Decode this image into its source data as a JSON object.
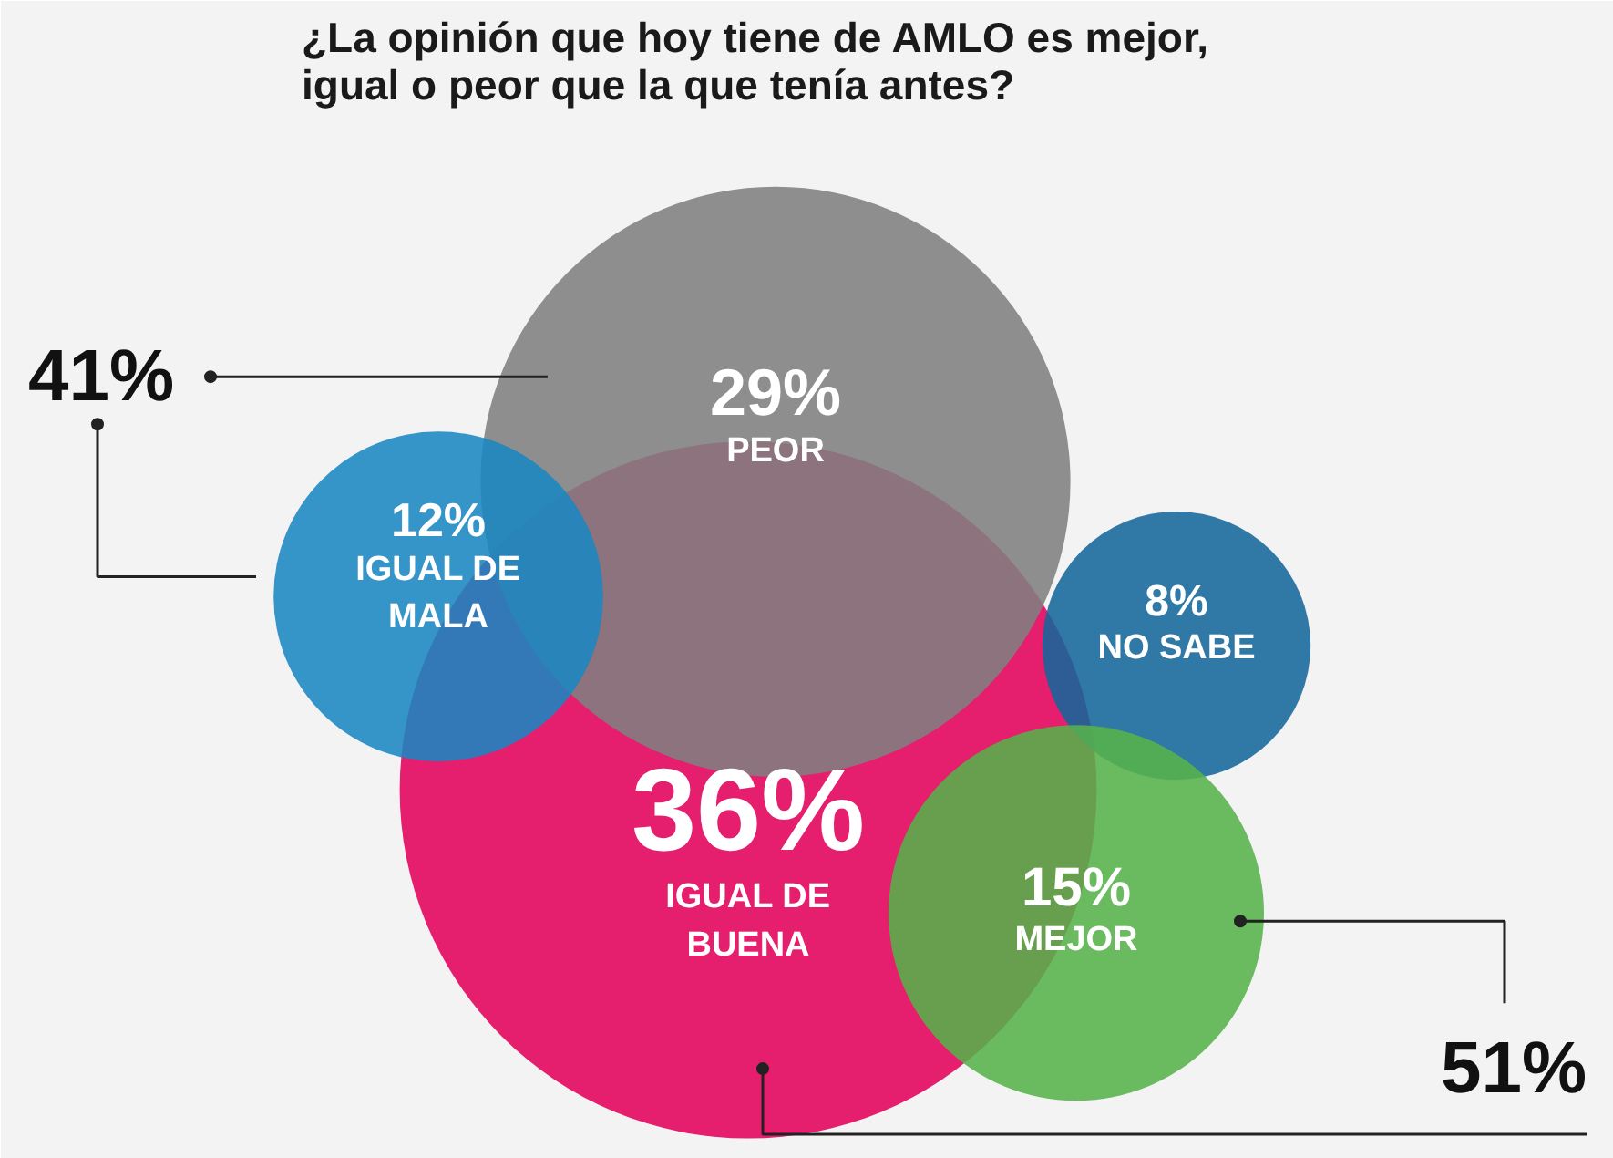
{
  "chart_data": {
    "type": "other",
    "title": "¿La opinión que hoy tiene de AMLO es mejor,\nigual o peor que la que tenía antes?",
    "categories": [
      "IGUAL DE\nBUENA",
      "PEOR",
      "IGUAL DE\nMALA",
      "NO SABE",
      "MEJOR"
    ],
    "values": [
      36,
      29,
      12,
      8,
      15
    ],
    "value_labels": [
      "36%",
      "29%",
      "12%",
      "8%",
      "15%"
    ],
    "colors": [
      "#e2005a",
      "#7f7f7f",
      "#1a86c2",
      "#15679b",
      "#56b24a"
    ],
    "annotations": [
      "41%",
      "51%"
    ]
  }
}
